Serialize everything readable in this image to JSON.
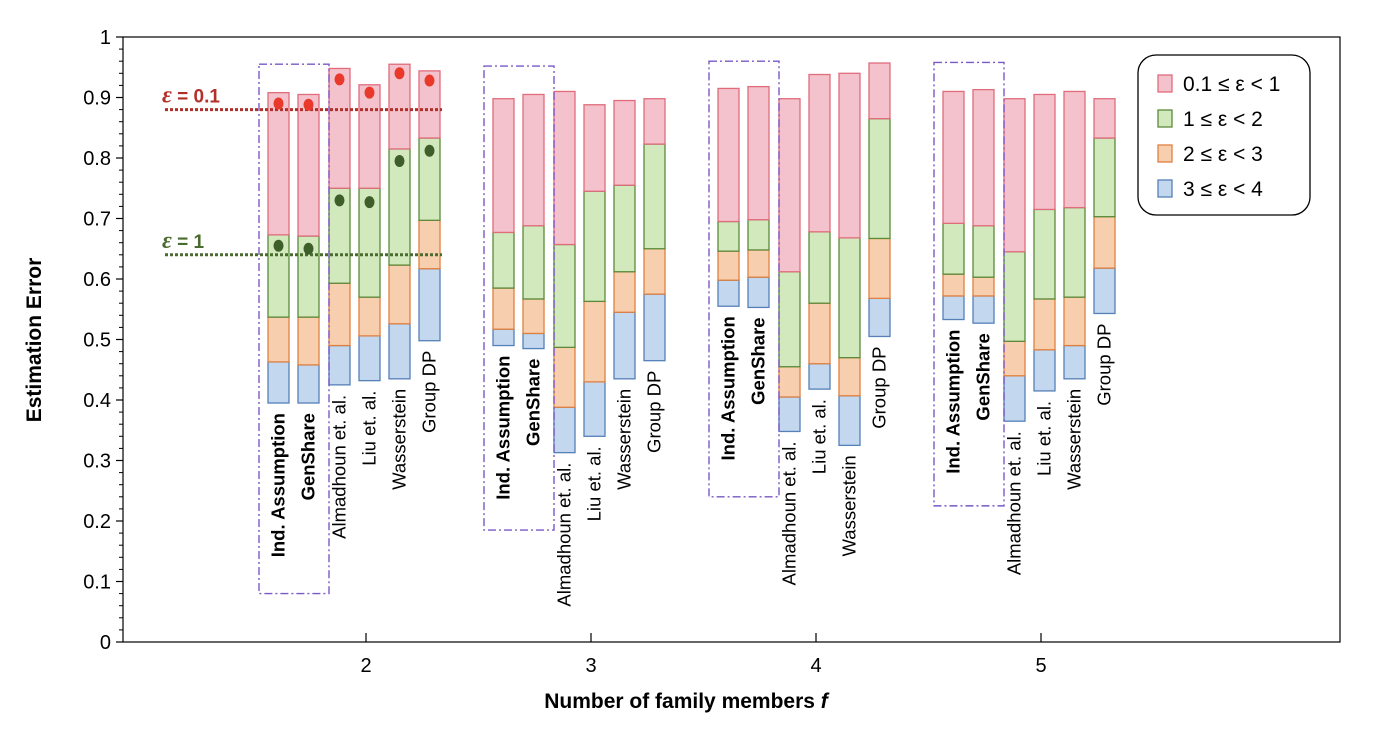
{
  "chart_data": {
    "type": "bar",
    "subtype": "stacked-floating-bar",
    "title": "",
    "xlabel": "Number of family members f",
    "xlabel_main": "Number of family members ",
    "xlabel_var": "f",
    "ylabel": "Estimation Error",
    "ylim": [
      0,
      1
    ],
    "y_ticks": [
      "0",
      "0.1",
      "0.2",
      "0.3",
      "0.4",
      "0.5",
      "0.6",
      "0.7",
      "0.8",
      "0.9",
      "1"
    ],
    "x_ticks": [
      "2",
      "3",
      "4",
      "5"
    ],
    "categories": [
      "2",
      "3",
      "4",
      "5"
    ],
    "methods": [
      "Ind. Assumption",
      "GenShare",
      "Almadhoun et. al.",
      "Liu et. al.",
      "Wasserstein",
      "Group DP"
    ],
    "highlighted_methods": [
      "Ind. Assumption",
      "GenShare"
    ],
    "series": [
      {
        "name": "0.1 ≤ ε < 1",
        "color": "#f4c2cc",
        "edge": "#e06c7c"
      },
      {
        "name": "1 ≤ ε < 2",
        "color": "#d2e8bd",
        "edge": "#5a8a3a"
      },
      {
        "name": "2 ≤ ε < 3",
        "color": "#f8cfae",
        "edge": "#e08040"
      },
      {
        "name": "3 ≤ ε < 4",
        "color": "#c3d7ee",
        "edge": "#5580b8"
      }
    ],
    "groups": [
      {
        "f": "2",
        "bars": [
          {
            "method": "Ind. Assumption",
            "bottom": 0.395,
            "b1": 0.463,
            "b2": 0.537,
            "b3": 0.673,
            "top": 0.908
          },
          {
            "method": "GenShare",
            "bottom": 0.395,
            "b1": 0.458,
            "b2": 0.537,
            "b3": 0.671,
            "top": 0.905
          },
          {
            "method": "Almadhoun et. al.",
            "bottom": 0.425,
            "b1": 0.49,
            "b2": 0.593,
            "b3": 0.75,
            "top": 0.948
          },
          {
            "method": "Liu et. al.",
            "bottom": 0.432,
            "b1": 0.506,
            "b2": 0.57,
            "b3": 0.75,
            "top": 0.921
          },
          {
            "method": "Wasserstein",
            "bottom": 0.435,
            "b1": 0.526,
            "b2": 0.623,
            "b3": 0.815,
            "top": 0.955
          },
          {
            "method": "Group DP",
            "bottom": 0.498,
            "b1": 0.617,
            "b2": 0.697,
            "b3": 0.833,
            "top": 0.944
          }
        ]
      },
      {
        "f": "3",
        "bars": [
          {
            "method": "Ind. Assumption",
            "bottom": 0.49,
            "b1": 0.517,
            "b2": 0.585,
            "b3": 0.677,
            "top": 0.898
          },
          {
            "method": "GenShare",
            "bottom": 0.485,
            "b1": 0.51,
            "b2": 0.567,
            "b3": 0.688,
            "top": 0.905
          },
          {
            "method": "Almadhoun et. al.",
            "bottom": 0.313,
            "b1": 0.388,
            "b2": 0.487,
            "b3": 0.657,
            "top": 0.91
          },
          {
            "method": "Liu et. al.",
            "bottom": 0.34,
            "b1": 0.43,
            "b2": 0.563,
            "b3": 0.745,
            "top": 0.888
          },
          {
            "method": "Wasserstein",
            "bottom": 0.435,
            "b1": 0.545,
            "b2": 0.612,
            "b3": 0.755,
            "top": 0.895
          },
          {
            "method": "Group DP",
            "bottom": 0.465,
            "b1": 0.575,
            "b2": 0.65,
            "b3": 0.823,
            "top": 0.898
          }
        ]
      },
      {
        "f": "4",
        "bars": [
          {
            "method": "Ind. Assumption",
            "bottom": 0.555,
            "b1": 0.598,
            "b2": 0.646,
            "b3": 0.695,
            "top": 0.915
          },
          {
            "method": "GenShare",
            "bottom": 0.553,
            "b1": 0.603,
            "b2": 0.648,
            "b3": 0.698,
            "top": 0.918
          },
          {
            "method": "Almadhoun et. al.",
            "bottom": 0.348,
            "b1": 0.405,
            "b2": 0.455,
            "b3": 0.612,
            "top": 0.898
          },
          {
            "method": "Liu et. al.",
            "bottom": 0.418,
            "b1": 0.46,
            "b2": 0.56,
            "b3": 0.678,
            "top": 0.938
          },
          {
            "method": "Wasserstein",
            "bottom": 0.325,
            "b1": 0.407,
            "b2": 0.47,
            "b3": 0.668,
            "top": 0.94
          },
          {
            "method": "Group DP",
            "bottom": 0.505,
            "b1": 0.568,
            "b2": 0.667,
            "b3": 0.865,
            "top": 0.957
          }
        ]
      },
      {
        "f": "5",
        "bars": [
          {
            "method": "Ind. Assumption",
            "bottom": 0.533,
            "b1": 0.572,
            "b2": 0.608,
            "b3": 0.692,
            "top": 0.91
          },
          {
            "method": "GenShare",
            "bottom": 0.527,
            "b1": 0.572,
            "b2": 0.603,
            "b3": 0.688,
            "top": 0.913
          },
          {
            "method": "Almadhoun et. al.",
            "bottom": 0.365,
            "b1": 0.44,
            "b2": 0.497,
            "b3": 0.645,
            "top": 0.898
          },
          {
            "method": "Liu et. al.",
            "bottom": 0.415,
            "b1": 0.483,
            "b2": 0.567,
            "b3": 0.715,
            "top": 0.905
          },
          {
            "method": "Wasserstein",
            "bottom": 0.435,
            "b1": 0.49,
            "b2": 0.57,
            "b3": 0.718,
            "top": 0.91
          },
          {
            "method": "Group DP",
            "bottom": 0.543,
            "b1": 0.618,
            "b2": 0.703,
            "b3": 0.833,
            "top": 0.898
          }
        ]
      }
    ],
    "reference_lines": [
      {
        "symbol": "ε",
        "label": " = 0.1",
        "value": 0.88,
        "color": "#b2302a"
      },
      {
        "symbol": "ε",
        "label": " = 1",
        "value": 0.64,
        "color": "#4a6b2e"
      }
    ],
    "markers": [
      {
        "f": "2",
        "method": "Ind. Assumption",
        "y": 0.89,
        "series": "0.1 ≤ ε < 1",
        "color": "#e8392a"
      },
      {
        "f": "2",
        "method": "GenShare",
        "y": 0.888,
        "series": "0.1 ≤ ε < 1",
        "color": "#e8392a"
      },
      {
        "f": "2",
        "method": "Almadhoun et. al.",
        "y": 0.93,
        "series": "0.1 ≤ ε < 1",
        "color": "#e8392a"
      },
      {
        "f": "2",
        "method": "Liu et. al.",
        "y": 0.908,
        "series": "0.1 ≤ ε < 1",
        "color": "#e8392a"
      },
      {
        "f": "2",
        "method": "Wasserstein",
        "y": 0.94,
        "series": "0.1 ≤ ε < 1",
        "color": "#e8392a"
      },
      {
        "f": "2",
        "method": "Group DP",
        "y": 0.928,
        "series": "0.1 ≤ ε < 1",
        "color": "#e8392a"
      },
      {
        "f": "2",
        "method": "Ind. Assumption",
        "y": 0.655,
        "series": "1 ≤ ε < 2",
        "color": "#3e5e2a"
      },
      {
        "f": "2",
        "method": "GenShare",
        "y": 0.65,
        "series": "1 ≤ ε < 2",
        "color": "#3e5e2a"
      },
      {
        "f": "2",
        "method": "Almadhoun et. al.",
        "y": 0.73,
        "series": "1 ≤ ε < 2",
        "color": "#3e5e2a"
      },
      {
        "f": "2",
        "method": "Liu et. al.",
        "y": 0.727,
        "series": "1 ≤ ε < 2",
        "color": "#3e5e2a"
      },
      {
        "f": "2",
        "method": "Wasserstein",
        "y": 0.795,
        "series": "1 ≤ ε < 2",
        "color": "#3e5e2a"
      },
      {
        "f": "2",
        "method": "Group DP",
        "y": 0.812,
        "series": "1 ≤ ε < 2",
        "color": "#3e5e2a"
      }
    ],
    "grid": false,
    "legend_position": "top-right"
  }
}
